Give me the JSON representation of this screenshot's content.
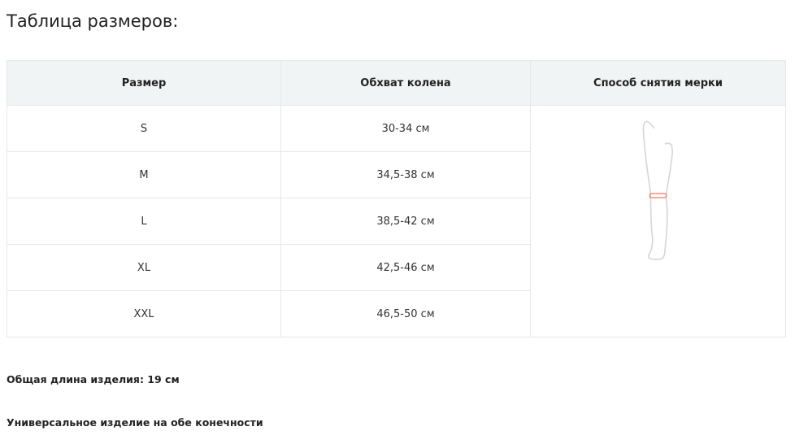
{
  "title": "Таблица размеров:",
  "table": {
    "headers": [
      "Размер",
      "Обхват колена",
      "Способ снятия мерки"
    ],
    "rows": [
      {
        "size": "S",
        "girth": "30-34 см"
      },
      {
        "size": "M",
        "girth": "34,5-38 см"
      },
      {
        "size": "L",
        "girth": "38,5-42 см"
      },
      {
        "size": "XL",
        "girth": "42,5-46 см"
      },
      {
        "size": "XXL",
        "girth": "46,5-50 см"
      }
    ],
    "illustration": "leg-knee-measurement-icon",
    "accent": "#f07a5f"
  },
  "notes": [
    "Общая длина изделия: 19 см",
    "Универсальное изделие на обе конечности"
  ]
}
